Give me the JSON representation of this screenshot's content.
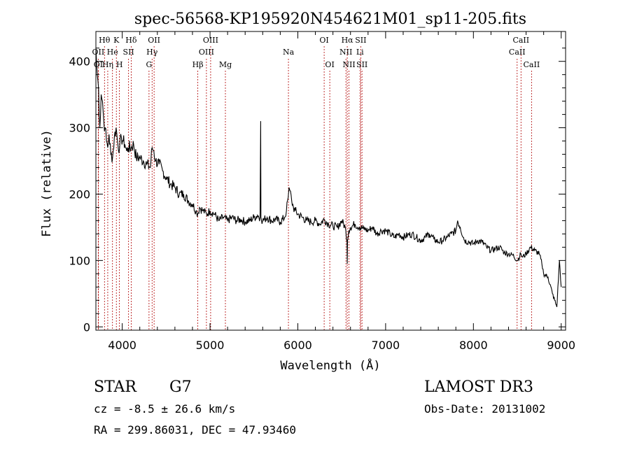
{
  "chart_data": {
    "type": "line",
    "title": "spec-56568-KP195920N454621M01_sp11-205.fits",
    "xlabel": "Wavelength (Å)",
    "ylabel": "Flux (relative)",
    "xlim": [
      3700,
      9050
    ],
    "ylim": [
      -5,
      445
    ],
    "xticks": [
      4000,
      5000,
      6000,
      7000,
      8000,
      9000
    ],
    "yticks": [
      0,
      100,
      200,
      300,
      400
    ],
    "line_color": "#000000",
    "marker_color": "#b00000",
    "grid": false,
    "spectrum": {
      "name": "flux",
      "x": [
        3700,
        3715,
        3730,
        3745,
        3760,
        3775,
        3790,
        3805,
        3820,
        3835,
        3850,
        3870,
        3890,
        3910,
        3930,
        3950,
        3970,
        3990,
        4010,
        4030,
        4050,
        4070,
        4100,
        4130,
        4160,
        4200,
        4240,
        4280,
        4320,
        4340,
        4360,
        4380,
        4420,
        4460,
        4500,
        4550,
        4600,
        4650,
        4700,
        4750,
        4800,
        4840,
        4860,
        4880,
        4920,
        4960,
        5000,
        5050,
        5100,
        5150,
        5200,
        5250,
        5300,
        5350,
        5400,
        5450,
        5500,
        5540,
        5570,
        5577,
        5580,
        5584,
        5600,
        5650,
        5700,
        5750,
        5800,
        5850,
        5870,
        5890,
        5900,
        5910,
        5930,
        5950,
        5970,
        6000,
        6050,
        6100,
        6150,
        6200,
        6250,
        6300,
        6350,
        6400,
        6450,
        6500,
        6540,
        6560,
        6563,
        6566,
        6580,
        6600,
        6650,
        6700,
        6750,
        6800,
        6850,
        6900,
        6950,
        7000,
        7050,
        7100,
        7150,
        7200,
        7250,
        7300,
        7350,
        7400,
        7450,
        7500,
        7550,
        7600,
        7650,
        7700,
        7750,
        7800,
        7820,
        7850,
        7900,
        7950,
        8000,
        8050,
        8100,
        8150,
        8200,
        8250,
        8300,
        8350,
        8400,
        8450,
        8500,
        8540,
        8560,
        8600,
        8650,
        8700,
        8750,
        8780,
        8800,
        8850,
        8900,
        8950,
        8980,
        9000
      ],
      "y": [
        420,
        380,
        360,
        300,
        350,
        340,
        310,
        300,
        280,
        270,
        290,
        260,
        255,
        285,
        300,
        275,
        270,
        285,
        280,
        275,
        265,
        270,
        270,
        275,
        255,
        255,
        250,
        245,
        240,
        270,
        265,
        250,
        245,
        235,
        225,
        215,
        210,
        200,
        200,
        190,
        185,
        175,
        170,
        180,
        175,
        170,
        175,
        170,
        160,
        165,
        160,
        165,
        160,
        162,
        158,
        160,
        165,
        168,
        165,
        310,
        165,
        162,
        160,
        165,
        160,
        162,
        158,
        165,
        175,
        195,
        210,
        205,
        190,
        180,
        175,
        170,
        165,
        160,
        158,
        160,
        155,
        162,
        155,
        152,
        150,
        160,
        150,
        130,
        95,
        130,
        145,
        150,
        155,
        150,
        148,
        145,
        150,
        140,
        145,
        145,
        140,
        135,
        140,
        135,
        138,
        140,
        135,
        130,
        135,
        140,
        132,
        128,
        130,
        135,
        140,
        145,
        160,
        150,
        130,
        128,
        125,
        130,
        128,
        120,
        115,
        118,
        120,
        112,
        110,
        108,
        100,
        110,
        105,
        110,
        120,
        115,
        110,
        95,
        80,
        75,
        50,
        30,
        100,
        60
      ]
    },
    "spectral_lines": [
      {
        "label": "Hθ",
        "x": 3798,
        "row": 0
      },
      {
        "label": "K",
        "x": 3933,
        "row": 0
      },
      {
        "label": "Hδ",
        "x": 4102,
        "row": 0
      },
      {
        "label": "OII",
        "x": 4363,
        "row": 0
      },
      {
        "label": "OIII",
        "x": 5007,
        "row": 0
      },
      {
        "label": "OI",
        "x": 6300,
        "row": 0
      },
      {
        "label": "Hα",
        "x": 6563,
        "row": 0
      },
      {
        "label": "SII",
        "x": 6717,
        "row": 0
      },
      {
        "label": "CaII",
        "x": 8542,
        "row": 0
      },
      {
        "label": "OII",
        "x": 3727,
        "row": 1
      },
      {
        "label": "He",
        "x": 3889,
        "row": 1
      },
      {
        "label": "SII",
        "x": 4072,
        "row": 1
      },
      {
        "label": "Hγ",
        "x": 4340,
        "row": 1
      },
      {
        "label": "OIII",
        "x": 4959,
        "row": 1
      },
      {
        "label": "Na",
        "x": 5893,
        "row": 1
      },
      {
        "label": "NII",
        "x": 6548,
        "row": 1
      },
      {
        "label": "Li",
        "x": 6708,
        "row": 1
      },
      {
        "label": "CaII",
        "x": 8498,
        "row": 1
      },
      {
        "label": "OI",
        "x": 3727,
        "row": 2
      },
      {
        "label": "Hη",
        "x": 3835,
        "row": 2
      },
      {
        "label": "H",
        "x": 3968,
        "row": 2
      },
      {
        "label": "G",
        "x": 4305,
        "row": 2
      },
      {
        "label": "Hβ",
        "x": 4861,
        "row": 2
      },
      {
        "label": "Mg",
        "x": 5175,
        "row": 2
      },
      {
        "label": "OI",
        "x": 6364,
        "row": 2
      },
      {
        "label": "NII",
        "x": 6583,
        "row": 2
      },
      {
        "label": "SII",
        "x": 6731,
        "row": 2
      },
      {
        "label": "CaII",
        "x": 8662,
        "row": 2
      }
    ]
  },
  "info": {
    "class_label": "STAR",
    "subclass": "G7",
    "survey": "LAMOST DR3",
    "cz": "cz = -8.5 ± 26.6 km/s",
    "obs_date": "Obs-Date: 20131002",
    "coords": "RA = 299.86031, DEC =  47.93460"
  }
}
